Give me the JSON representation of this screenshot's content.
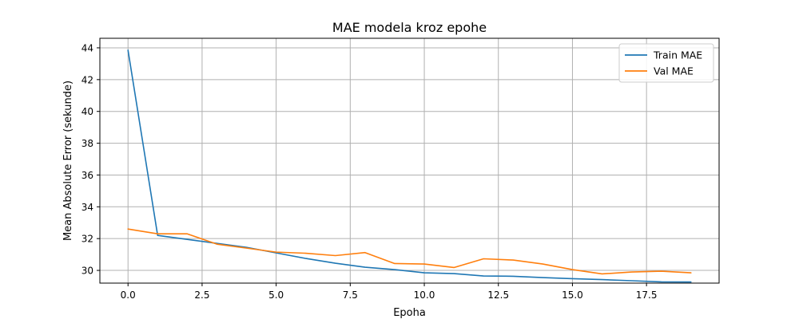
{
  "chart_data": {
    "type": "line",
    "title": "MAE modela kroz epohe",
    "xlabel": "Epoha",
    "ylabel": "Mean Absolute Error (sekunde)",
    "xlim": [
      -0.95,
      19.95
    ],
    "ylim": [
      29.2,
      44.6
    ],
    "xticks": [
      0.0,
      2.5,
      5.0,
      7.5,
      10.0,
      12.5,
      15.0,
      17.5
    ],
    "xtick_labels": [
      "0.0",
      "2.5",
      "5.0",
      "7.5",
      "10.0",
      "12.5",
      "15.0",
      "17.5"
    ],
    "yticks": [
      30,
      32,
      34,
      36,
      38,
      40,
      42,
      44
    ],
    "ytick_labels": [
      "30",
      "32",
      "34",
      "36",
      "38",
      "40",
      "42",
      "44"
    ],
    "grid": true,
    "legend_position": "top-right",
    "x": [
      0,
      1,
      2,
      3,
      4,
      5,
      6,
      7,
      8,
      9,
      10,
      11,
      12,
      13,
      14,
      15,
      16,
      17,
      18,
      19
    ],
    "series": [
      {
        "name": "Train MAE",
        "color": "#1f77b4",
        "values": [
          43.85,
          32.2,
          31.95,
          31.7,
          31.45,
          31.1,
          30.75,
          30.45,
          30.2,
          30.05,
          29.85,
          29.8,
          29.65,
          29.63,
          29.55,
          29.48,
          29.42,
          29.35,
          29.28,
          29.27
        ]
      },
      {
        "name": "Val MAE",
        "color": "#ff7f0e",
        "values": [
          32.6,
          32.3,
          32.3,
          31.65,
          31.4,
          31.15,
          31.08,
          30.93,
          31.12,
          30.43,
          30.4,
          30.18,
          30.73,
          30.65,
          30.4,
          30.05,
          29.78,
          29.9,
          29.95,
          29.85
        ]
      }
    ]
  }
}
